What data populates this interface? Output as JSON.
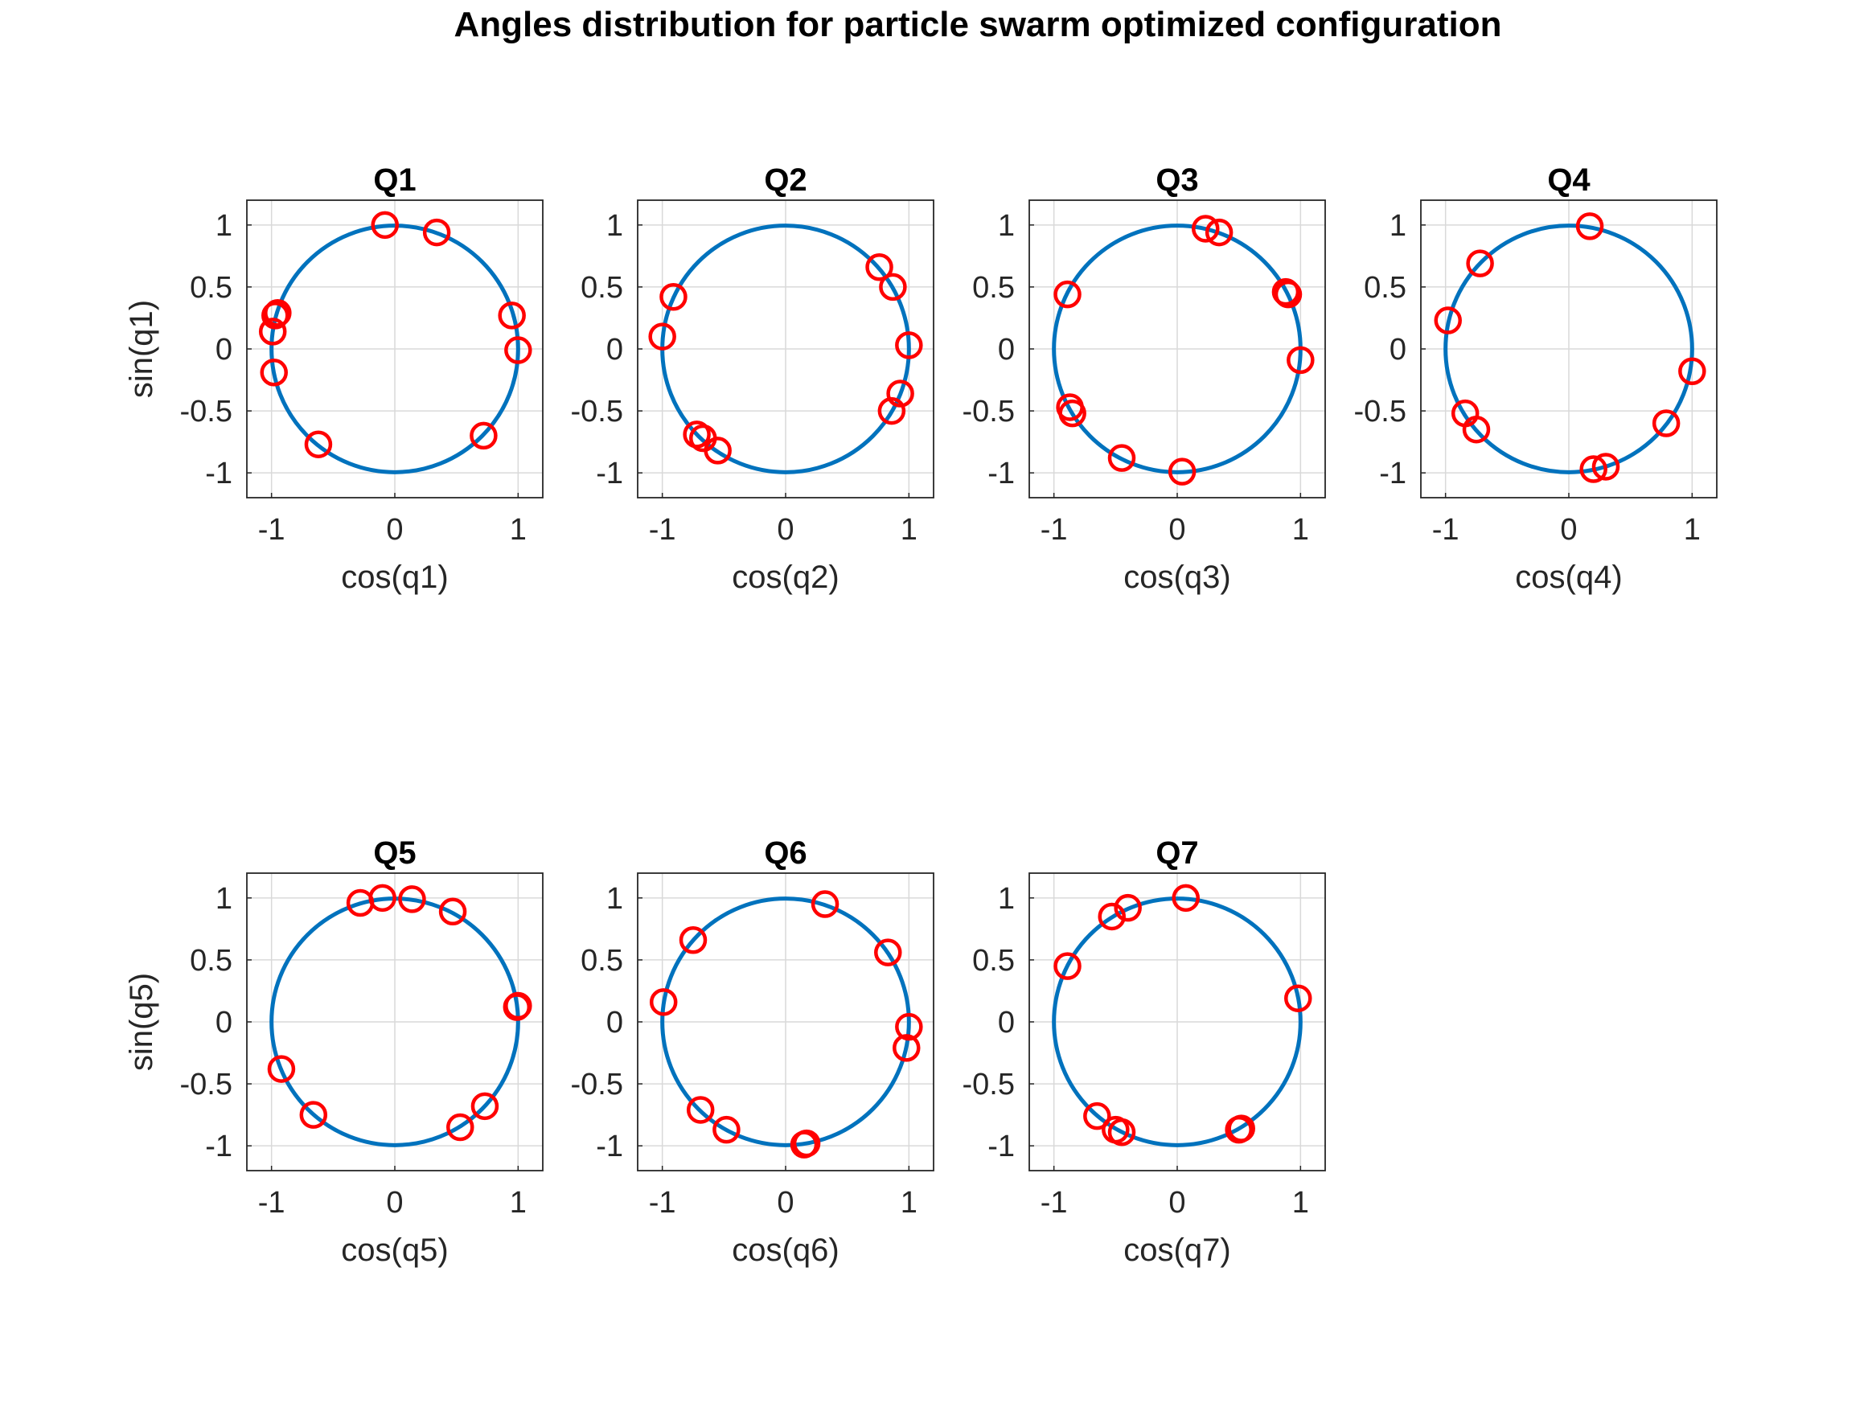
{
  "figure": {
    "title": "Angles distribution for particle swarm optimized configuration"
  },
  "colors": {
    "circle": "#0072BD",
    "markers": "#FF0000",
    "axes": "#262626",
    "grid": "#D9D9D9"
  },
  "chart_data": [
    {
      "type": "scatter",
      "title": "Q1",
      "xlabel": "cos(q1)",
      "ylabel": "sin(q1)",
      "xlim": [
        -1.2,
        1.2
      ],
      "ylim": [
        -1.2,
        1.2
      ],
      "xticks": [
        -1,
        0,
        1
      ],
      "yticks": [
        -1,
        -0.5,
        0,
        0.5,
        1
      ],
      "grid": true,
      "points": [
        [
          -0.08,
          1.0
        ],
        [
          0.34,
          0.94
        ],
        [
          0.95,
          0.27
        ],
        [
          1.0,
          -0.01
        ],
        [
          0.72,
          -0.7
        ],
        [
          -0.62,
          -0.77
        ],
        [
          -0.98,
          -0.19
        ],
        [
          -0.99,
          0.14
        ],
        [
          -0.97,
          0.27
        ],
        [
          -0.95,
          0.29
        ]
      ]
    },
    {
      "type": "scatter",
      "title": "Q2",
      "xlabel": "cos(q2)",
      "ylabel": "",
      "xlim": [
        -1.2,
        1.2
      ],
      "ylim": [
        -1.2,
        1.2
      ],
      "xticks": [
        -1,
        0,
        1
      ],
      "yticks": [
        -1,
        -0.5,
        0,
        0.5,
        1
      ],
      "grid": true,
      "points": [
        [
          0.76,
          0.66
        ],
        [
          0.87,
          0.5
        ],
        [
          1.0,
          0.03
        ],
        [
          0.93,
          -0.36
        ],
        [
          0.86,
          -0.5
        ],
        [
          -0.55,
          -0.82
        ],
        [
          -0.67,
          -0.72
        ],
        [
          -0.72,
          -0.69
        ],
        [
          -1.0,
          0.1
        ],
        [
          -0.91,
          0.42
        ]
      ]
    },
    {
      "type": "scatter",
      "title": "Q3",
      "xlabel": "cos(q3)",
      "ylabel": "",
      "xlim": [
        -1.2,
        1.2
      ],
      "ylim": [
        -1.2,
        1.2
      ],
      "xticks": [
        -1,
        0,
        1
      ],
      "yticks": [
        -1,
        -0.5,
        0,
        0.5,
        1
      ],
      "grid": true,
      "points": [
        [
          0.23,
          0.97
        ],
        [
          0.34,
          0.94
        ],
        [
          0.88,
          0.46
        ],
        [
          0.9,
          0.44
        ],
        [
          0.89,
          0.45
        ],
        [
          1.0,
          -0.09
        ],
        [
          0.04,
          -0.99
        ],
        [
          -0.45,
          -0.88
        ],
        [
          -0.85,
          -0.52
        ],
        [
          -0.87,
          -0.47
        ],
        [
          -0.89,
          0.44
        ]
      ]
    },
    {
      "type": "scatter",
      "title": "Q4",
      "xlabel": "cos(q4)",
      "ylabel": "",
      "xlim": [
        -1.2,
        1.2
      ],
      "ylim": [
        -1.2,
        1.2
      ],
      "xticks": [
        -1,
        0,
        1
      ],
      "yticks": [
        -1,
        -0.5,
        0,
        0.5,
        1
      ],
      "grid": true,
      "points": [
        [
          0.17,
          0.99
        ],
        [
          -0.72,
          0.69
        ],
        [
          -0.98,
          0.23
        ],
        [
          -0.84,
          -0.52
        ],
        [
          -0.75,
          -0.65
        ],
        [
          1.0,
          -0.18
        ],
        [
          0.79,
          -0.6
        ],
        [
          0.2,
          -0.97
        ],
        [
          0.3,
          -0.95
        ]
      ]
    },
    {
      "type": "scatter",
      "title": "Q5",
      "xlabel": "cos(q5)",
      "ylabel": "sin(q5)",
      "xlim": [
        -1.2,
        1.2
      ],
      "ylim": [
        -1.2,
        1.2
      ],
      "xticks": [
        -1,
        0,
        1
      ],
      "yticks": [
        -1,
        -0.5,
        0,
        0.5,
        1
      ],
      "grid": true,
      "points": [
        [
          -0.28,
          0.96
        ],
        [
          -0.1,
          1.0
        ],
        [
          0.14,
          0.99
        ],
        [
          0.47,
          0.89
        ],
        [
          1.0,
          0.13
        ],
        [
          0.99,
          0.12
        ],
        [
          0.73,
          -0.68
        ],
        [
          0.53,
          -0.85
        ],
        [
          -0.66,
          -0.75
        ],
        [
          -0.92,
          -0.38
        ]
      ]
    },
    {
      "type": "scatter",
      "title": "Q6",
      "xlabel": "cos(q6)",
      "ylabel": "",
      "xlim": [
        -1.2,
        1.2
      ],
      "ylim": [
        -1.2,
        1.2
      ],
      "xticks": [
        -1,
        0,
        1
      ],
      "yticks": [
        -1,
        -0.5,
        0,
        0.5,
        1
      ],
      "grid": true,
      "points": [
        [
          0.32,
          0.95
        ],
        [
          0.83,
          0.56
        ],
        [
          1.0,
          -0.04
        ],
        [
          0.98,
          -0.21
        ],
        [
          0.17,
          -0.98
        ],
        [
          0.15,
          -0.99
        ],
        [
          -0.48,
          -0.87
        ],
        [
          -0.69,
          -0.71
        ],
        [
          -0.99,
          0.16
        ],
        [
          -0.75,
          0.66
        ]
      ]
    },
    {
      "type": "scatter",
      "title": "Q7",
      "xlabel": "cos(q7)",
      "ylabel": "",
      "xlim": [
        -1.2,
        1.2
      ],
      "ylim": [
        -1.2,
        1.2
      ],
      "xticks": [
        -1,
        0,
        1
      ],
      "yticks": [
        -1,
        -0.5,
        0,
        0.5,
        1
      ],
      "grid": true,
      "points": [
        [
          0.07,
          1.0
        ],
        [
          -0.4,
          0.92
        ],
        [
          -0.53,
          0.85
        ],
        [
          -0.89,
          0.45
        ],
        [
          0.98,
          0.19
        ],
        [
          0.5,
          -0.87
        ],
        [
          0.52,
          -0.86
        ],
        [
          -0.45,
          -0.89
        ],
        [
          -0.5,
          -0.87
        ],
        [
          -0.65,
          -0.76
        ]
      ]
    }
  ]
}
